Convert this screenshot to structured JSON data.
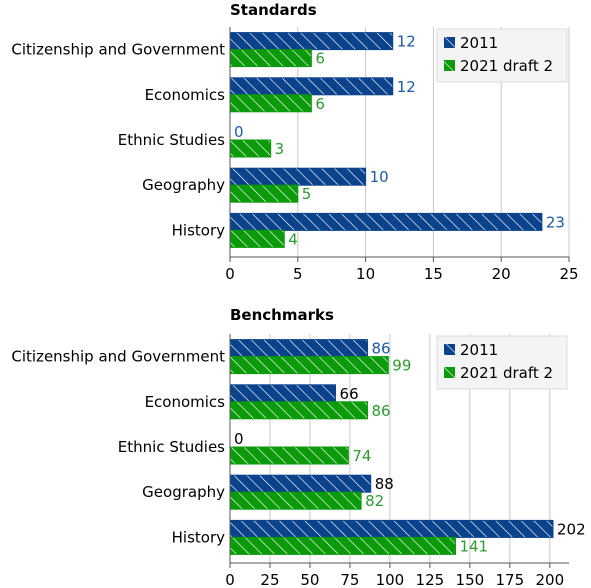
{
  "chart_data": [
    {
      "type": "bar",
      "orientation": "horizontal",
      "title": "Standards",
      "categories": [
        "Citizenship and Government",
        "Economics",
        "Ethnic Studies",
        "Geography",
        "History"
      ],
      "series": [
        {
          "name": "2011",
          "values": [
            12,
            12,
            0,
            10,
            23
          ],
          "color": "#0a428c",
          "label_color": "#1c5aa6"
        },
        {
          "name": "2021 draft 2",
          "values": [
            6,
            6,
            3,
            5,
            4
          ],
          "color": "#0a9a0a",
          "label_color": "#2f9a2f"
        }
      ],
      "xlim": [
        0,
        25
      ],
      "ticks": [
        "0",
        "5",
        "10",
        "15",
        "20",
        "25"
      ],
      "grid": true,
      "legend_position": "top-right"
    },
    {
      "type": "bar",
      "orientation": "horizontal",
      "title": "Benchmarks",
      "categories": [
        "Citizenship and Government",
        "Economics",
        "Ethnic Studies",
        "Geography",
        "History"
      ],
      "series": [
        {
          "name": "2011",
          "values": [
            86,
            66,
            0,
            88,
            202
          ],
          "color": "#0a428c",
          "label_colors": [
            "#1c5aa6",
            "#000000",
            "#000000",
            "#000000",
            "#000000"
          ]
        },
        {
          "name": "2021 draft 2",
          "values": [
            99,
            86,
            74,
            82,
            141
          ],
          "color": "#0a9a0a",
          "label_color": "#2f9a2f"
        }
      ],
      "xlim": [
        0,
        212
      ],
      "ticks": [
        "0",
        "25",
        "50",
        "75",
        "100",
        "125",
        "150",
        "175",
        "200"
      ],
      "grid": true,
      "legend_position": "top-right"
    }
  ]
}
